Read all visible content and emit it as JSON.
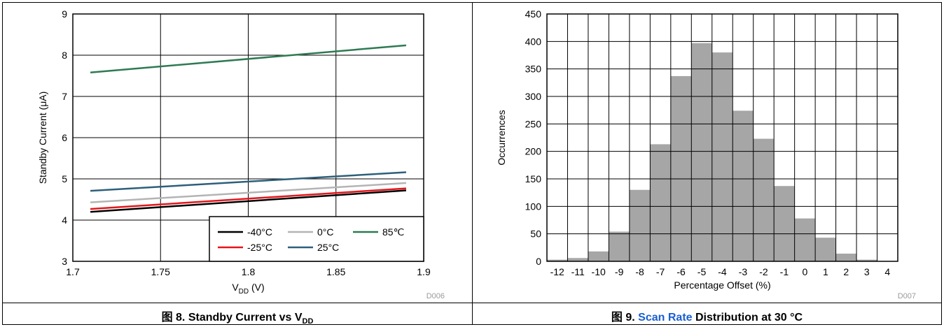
{
  "figures": [
    {
      "id": "fig8",
      "caption_prefix": "图 8. Standby Current vs V",
      "caption_sub": "DD",
      "tag": "D006"
    },
    {
      "id": "fig9",
      "caption_prefix": "图 9. ",
      "caption_link": "Scan Rate",
      "caption_suffix": " Distribution at 30 °C",
      "tag": "D007"
    }
  ],
  "chart_data": [
    {
      "type": "line",
      "title": "",
      "xlabel_main": "V",
      "xlabel_sub": "DD",
      "xlabel_unit": " (V)",
      "ylabel": "Standby Current (μA)",
      "xlim": [
        1.7,
        1.9
      ],
      "ylim": [
        3,
        9
      ],
      "x_ticks": [
        "1.7",
        "1.75",
        "1.8",
        "1.85",
        "1.9"
      ],
      "y_ticks": [
        "3",
        "4",
        "5",
        "6",
        "7",
        "8",
        "9"
      ],
      "grid": true,
      "legend_position": "bottom-right",
      "series": [
        {
          "name": "-40°C",
          "color": "#000000",
          "x": [
            1.71,
            1.89
          ],
          "y": [
            4.2,
            4.72
          ]
        },
        {
          "name": "-25°C",
          "color": "#e3161b",
          "x": [
            1.71,
            1.89
          ],
          "y": [
            4.27,
            4.77
          ]
        },
        {
          "name": "0°C",
          "color": "#b4b4b4",
          "x": [
            1.71,
            1.89
          ],
          "y": [
            4.43,
            4.9
          ]
        },
        {
          "name": "25°C",
          "color": "#2e5f7a",
          "x": [
            1.71,
            1.89
          ],
          "y": [
            4.71,
            5.16
          ]
        },
        {
          "name": "85℃",
          "color": "#2e7a52",
          "x": [
            1.71,
            1.89
          ],
          "y": [
            7.58,
            8.24
          ]
        }
      ]
    },
    {
      "type": "bar",
      "title": "",
      "xlabel": "Percentage Offset (%)",
      "ylabel": "Occurrences",
      "categories": [
        "-12",
        "-11",
        "-10",
        "-9",
        "-8",
        "-7",
        "-6",
        "-5",
        "-4",
        "-3",
        "-2",
        "-1",
        "0",
        "1",
        "2",
        "3",
        "4"
      ],
      "values": [
        3,
        6,
        18,
        54,
        130,
        213,
        337,
        397,
        380,
        274,
        223,
        137,
        78,
        43,
        14,
        3,
        0
      ],
      "bar_color": "#a6a6a6",
      "ylim": [
        0,
        450
      ],
      "y_ticks": [
        "0",
        "50",
        "100",
        "150",
        "200",
        "250",
        "300",
        "350",
        "400",
        "450"
      ],
      "grid": true
    }
  ]
}
